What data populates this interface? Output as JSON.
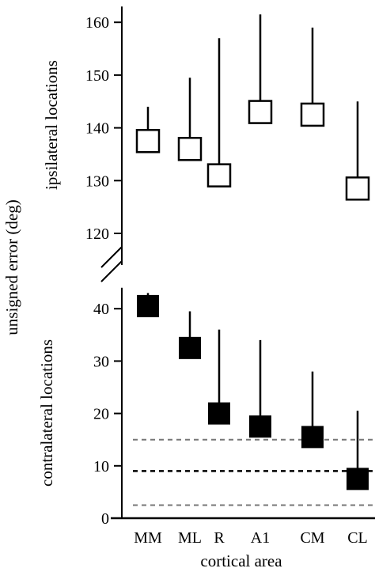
{
  "chart_data": [
    {
      "panel": "top",
      "type": "scatter",
      "ylabel": "ipsilateral locations",
      "categories": [
        "MM",
        "ML",
        "R",
        "A1",
        "CM",
        "CL"
      ],
      "y_ticks": [
        120,
        130,
        140,
        150,
        160
      ],
      "ylim": [
        114,
        163
      ],
      "marker": "open-square",
      "series": [
        {
          "values": [
            137.5,
            136,
            131,
            143,
            142.5,
            128.5
          ],
          "upper_error": [
            144,
            149.5,
            157,
            161.5,
            159,
            145
          ]
        }
      ]
    },
    {
      "panel": "bottom",
      "type": "scatter",
      "ylabel": "contralateral locations",
      "xlabel": "cortical area",
      "categories": [
        "MM",
        "ML",
        "R",
        "A1",
        "CM",
        "CL"
      ],
      "y_ticks": [
        0,
        10,
        20,
        30,
        40
      ],
      "ylim": [
        0,
        44
      ],
      "marker": "filled-square",
      "series": [
        {
          "values": [
            40.5,
            32.5,
            20,
            17.5,
            15.5,
            7.5
          ],
          "upper_error": [
            43,
            39.5,
            36,
            34,
            28,
            20.5
          ]
        }
      ],
      "reference_lines": [
        {
          "value": 15,
          "style": "dashed",
          "color": "#777777"
        },
        {
          "value": 9,
          "style": "dashed",
          "color": "#000000"
        },
        {
          "value": 2.5,
          "style": "dashed",
          "color": "#777777"
        }
      ]
    }
  ],
  "shared_ylabel": "unsigned error (deg)"
}
